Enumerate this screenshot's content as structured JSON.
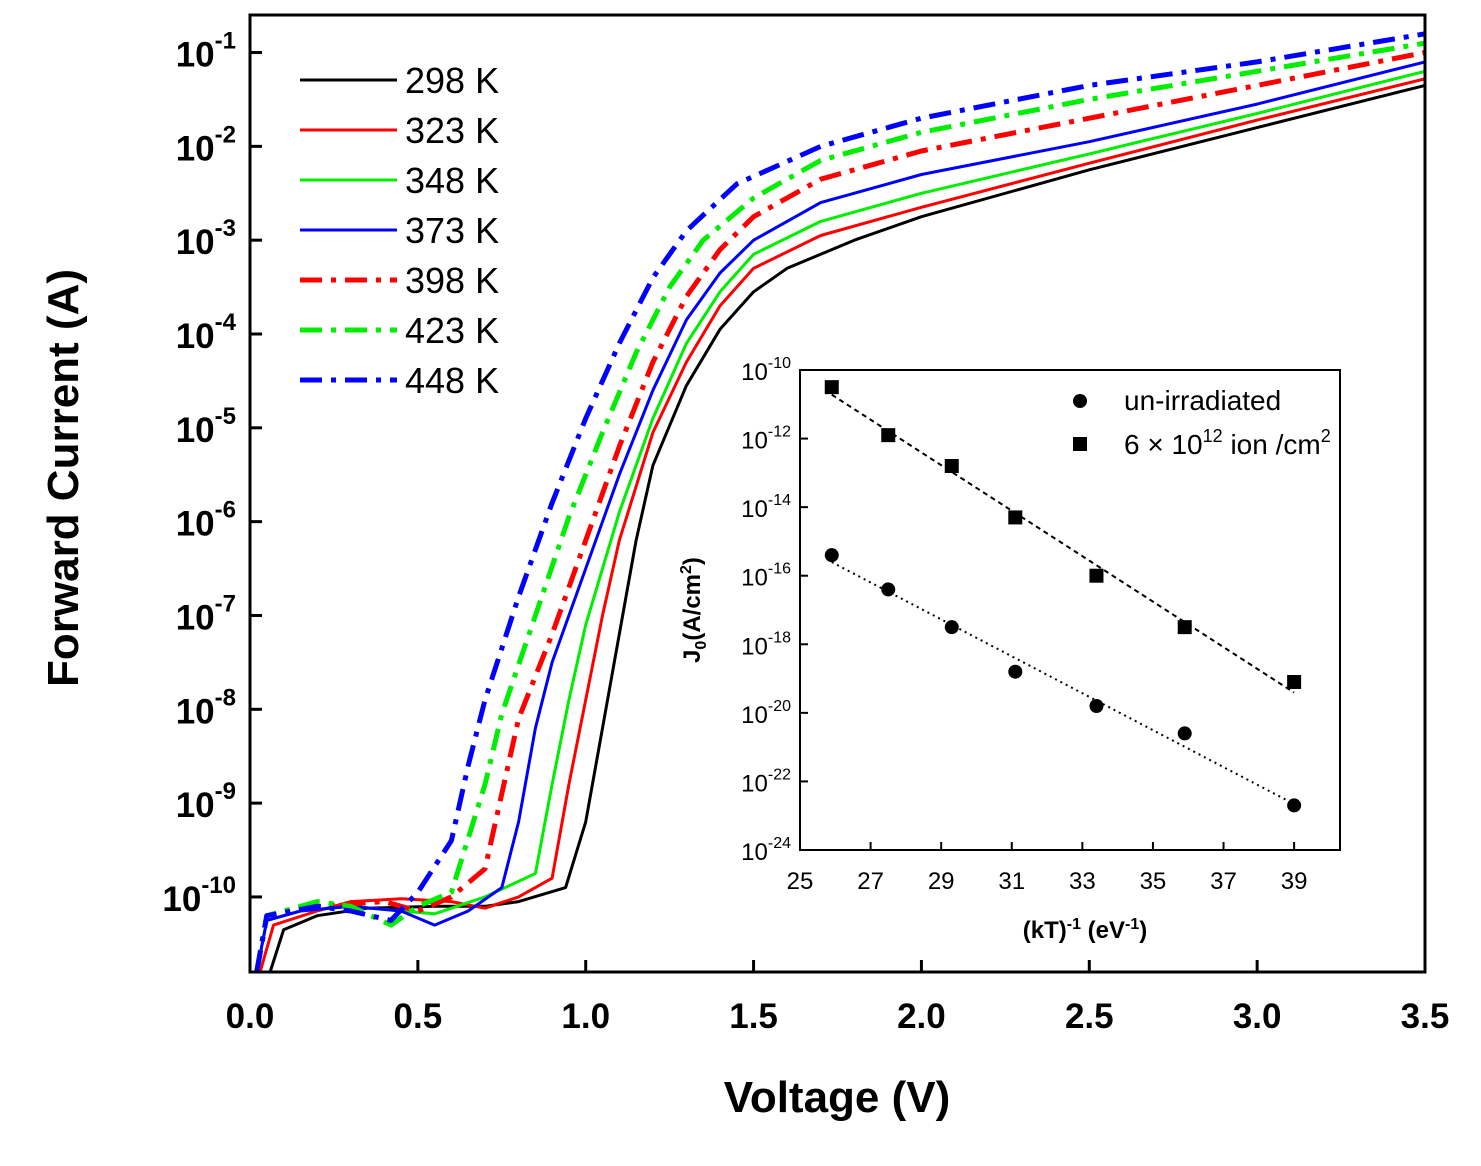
{
  "chart_data": [
    {
      "type": "line",
      "id": "main",
      "xlabel": "Voltage (V)",
      "ylabel": "Forward Current (A)",
      "xlim": [
        0,
        3.5
      ],
      "ylim_log10": [
        -10.8,
        -0.6
      ],
      "x_ticks": [
        {
          "value": 0.0,
          "label": "0.0"
        },
        {
          "value": 0.5,
          "label": "0.5"
        },
        {
          "value": 1.0,
          "label": "1.0"
        },
        {
          "value": 1.5,
          "label": "1.5"
        },
        {
          "value": 2.0,
          "label": "2.0"
        },
        {
          "value": 2.5,
          "label": "2.5"
        },
        {
          "value": 3.0,
          "label": "3.0"
        },
        {
          "value": 3.5,
          "label": "3.5"
        }
      ],
      "y_ticks": [
        {
          "exp": -1,
          "base": "10",
          "sup": "-1"
        },
        {
          "exp": -2,
          "base": "10",
          "sup": "-2"
        },
        {
          "exp": -3,
          "base": "10",
          "sup": "-3"
        },
        {
          "exp": -4,
          "base": "10",
          "sup": "-4"
        },
        {
          "exp": -5,
          "base": "10",
          "sup": "-5"
        },
        {
          "exp": -6,
          "base": "10",
          "sup": "-6"
        },
        {
          "exp": -7,
          "base": "10",
          "sup": "-7"
        },
        {
          "exp": -8,
          "base": "10",
          "sup": "-8"
        },
        {
          "exp": -9,
          "base": "10",
          "sup": "-9"
        },
        {
          "exp": -10,
          "base": "10",
          "sup": "-10"
        }
      ],
      "legend_position": "top-left",
      "series": [
        {
          "name": "298 K",
          "color": "#000000",
          "style": "solid",
          "points": [
            [
              0.06,
              -10.8
            ],
            [
              0.1,
              -10.35
            ],
            [
              0.2,
              -10.2
            ],
            [
              0.35,
              -10.12
            ],
            [
              0.55,
              -10.1
            ],
            [
              0.7,
              -10.1
            ],
            [
              0.8,
              -10.05
            ],
            [
              0.94,
              -9.9
            ],
            [
              1.0,
              -9.2
            ],
            [
              1.05,
              -8.2
            ],
            [
              1.1,
              -7.2
            ],
            [
              1.15,
              -6.2
            ],
            [
              1.2,
              -5.4
            ],
            [
              1.3,
              -4.55
            ],
            [
              1.4,
              -3.95
            ],
            [
              1.5,
              -3.55
            ],
            [
              1.6,
              -3.3
            ],
            [
              1.8,
              -3.0
            ],
            [
              2.0,
              -2.75
            ],
            [
              2.5,
              -2.25
            ],
            [
              3.0,
              -1.8
            ],
            [
              3.5,
              -1.35
            ]
          ]
        },
        {
          "name": "323 K",
          "color": "#ff0000",
          "style": "solid",
          "points": [
            [
              0.03,
              -10.8
            ],
            [
              0.07,
              -10.3
            ],
            [
              0.2,
              -10.15
            ],
            [
              0.3,
              -10.05
            ],
            [
              0.45,
              -10.02
            ],
            [
              0.6,
              -10.05
            ],
            [
              0.7,
              -10.12
            ],
            [
              0.8,
              -10.0
            ],
            [
              0.9,
              -9.8
            ],
            [
              0.95,
              -8.8
            ],
            [
              1.0,
              -7.9
            ],
            [
              1.05,
              -7.0
            ],
            [
              1.1,
              -6.2
            ],
            [
              1.2,
              -5.05
            ],
            [
              1.3,
              -4.3
            ],
            [
              1.4,
              -3.7
            ],
            [
              1.5,
              -3.3
            ],
            [
              1.7,
              -2.95
            ],
            [
              2.0,
              -2.65
            ],
            [
              2.5,
              -2.18
            ],
            [
              3.0,
              -1.72
            ],
            [
              3.5,
              -1.28
            ]
          ]
        },
        {
          "name": "348 K",
          "color": "#00ee00",
          "style": "solid",
          "points": [
            [
              0.02,
              -10.8
            ],
            [
              0.05,
              -10.25
            ],
            [
              0.15,
              -10.15
            ],
            [
              0.3,
              -10.1
            ],
            [
              0.45,
              -10.15
            ],
            [
              0.55,
              -10.18
            ],
            [
              0.7,
              -10.0
            ],
            [
              0.85,
              -9.75
            ],
            [
              0.9,
              -8.8
            ],
            [
              0.95,
              -7.9
            ],
            [
              1.0,
              -7.1
            ],
            [
              1.1,
              -5.9
            ],
            [
              1.2,
              -4.9
            ],
            [
              1.3,
              -4.1
            ],
            [
              1.4,
              -3.55
            ],
            [
              1.5,
              -3.15
            ],
            [
              1.7,
              -2.8
            ],
            [
              2.0,
              -2.5
            ],
            [
              2.5,
              -2.08
            ],
            [
              3.0,
              -1.65
            ],
            [
              3.5,
              -1.2
            ]
          ]
        },
        {
          "name": "373 K",
          "color": "#0000ff",
          "style": "solid",
          "points": [
            [
              0.02,
              -10.8
            ],
            [
              0.05,
              -10.25
            ],
            [
              0.15,
              -10.15
            ],
            [
              0.3,
              -10.1
            ],
            [
              0.45,
              -10.15
            ],
            [
              0.55,
              -10.3
            ],
            [
              0.65,
              -10.15
            ],
            [
              0.75,
              -9.9
            ],
            [
              0.8,
              -9.2
            ],
            [
              0.85,
              -8.2
            ],
            [
              0.9,
              -7.5
            ],
            [
              1.0,
              -6.5
            ],
            [
              1.1,
              -5.5
            ],
            [
              1.2,
              -4.6
            ],
            [
              1.3,
              -3.85
            ],
            [
              1.4,
              -3.35
            ],
            [
              1.5,
              -3.0
            ],
            [
              1.7,
              -2.6
            ],
            [
              2.0,
              -2.3
            ],
            [
              2.5,
              -1.95
            ],
            [
              3.0,
              -1.55
            ],
            [
              3.5,
              -1.1
            ]
          ]
        },
        {
          "name": "398 K",
          "color": "#ff0000",
          "style": "dashdot",
          "points": [
            [
              0.02,
              -10.8
            ],
            [
              0.05,
              -10.2
            ],
            [
              0.2,
              -10.1
            ],
            [
              0.4,
              -10.05
            ],
            [
              0.5,
              -10.15
            ],
            [
              0.6,
              -10.0
            ],
            [
              0.7,
              -9.7
            ],
            [
              0.75,
              -8.9
            ],
            [
              0.8,
              -8.1
            ],
            [
              0.9,
              -7.2
            ],
            [
              1.0,
              -6.2
            ],
            [
              1.1,
              -5.2
            ],
            [
              1.2,
              -4.3
            ],
            [
              1.3,
              -3.6
            ],
            [
              1.4,
              -3.1
            ],
            [
              1.5,
              -2.75
            ],
            [
              1.7,
              -2.35
            ],
            [
              2.0,
              -2.05
            ],
            [
              2.5,
              -1.7
            ],
            [
              3.0,
              -1.35
            ],
            [
              3.5,
              -1.0
            ]
          ]
        },
        {
          "name": "423 K",
          "color": "#00ee00",
          "style": "dashdot",
          "points": [
            [
              0.02,
              -10.8
            ],
            [
              0.05,
              -10.2
            ],
            [
              0.2,
              -10.05
            ],
            [
              0.3,
              -10.1
            ],
            [
              0.42,
              -10.3
            ],
            [
              0.5,
              -10.1
            ],
            [
              0.6,
              -9.95
            ],
            [
              0.7,
              -8.8
            ],
            [
              0.75,
              -8.05
            ],
            [
              0.85,
              -7.0
            ],
            [
              0.95,
              -5.95
            ],
            [
              1.05,
              -5.05
            ],
            [
              1.15,
              -4.2
            ],
            [
              1.25,
              -3.5
            ],
            [
              1.35,
              -3.0
            ],
            [
              1.5,
              -2.55
            ],
            [
              1.7,
              -2.15
            ],
            [
              2.0,
              -1.85
            ],
            [
              2.5,
              -1.5
            ],
            [
              3.0,
              -1.2
            ],
            [
              3.5,
              -0.9
            ]
          ]
        },
        {
          "name": "448 K",
          "color": "#0000ff",
          "style": "dashdot",
          "points": [
            [
              0.02,
              -10.8
            ],
            [
              0.05,
              -10.2
            ],
            [
              0.2,
              -10.1
            ],
            [
              0.3,
              -10.15
            ],
            [
              0.42,
              -10.25
            ],
            [
              0.5,
              -9.95
            ],
            [
              0.6,
              -9.4
            ],
            [
              0.65,
              -8.6
            ],
            [
              0.7,
              -7.9
            ],
            [
              0.8,
              -6.8
            ],
            [
              0.9,
              -5.8
            ],
            [
              1.0,
              -4.9
            ],
            [
              1.1,
              -4.1
            ],
            [
              1.2,
              -3.4
            ],
            [
              1.3,
              -2.9
            ],
            [
              1.45,
              -2.4
            ],
            [
              1.7,
              -2.0
            ],
            [
              2.0,
              -1.7
            ],
            [
              2.5,
              -1.35
            ],
            [
              3.0,
              -1.1
            ],
            [
              3.5,
              -0.8
            ]
          ]
        }
      ]
    },
    {
      "type": "scatter",
      "id": "inset",
      "xlabel_parts": {
        "pre": "(kT)",
        "sup1": "-1",
        "mid": " (eV",
        "sup2": "-1",
        "post": ")"
      },
      "ylabel_parts": {
        "pre": "J",
        "sub": "0",
        "mid": "(A/cm",
        "sup": "2",
        "post": ")"
      },
      "xlim": [
        25,
        40.3
      ],
      "ylim_log10": [
        -24,
        -10
      ],
      "x_ticks": [
        "25",
        "27",
        "29",
        "31",
        "33",
        "35",
        "37",
        "39"
      ],
      "y_ticks": [
        {
          "exp": -10,
          "base": "10",
          "sup": "-10"
        },
        {
          "exp": -12,
          "base": "10",
          "sup": "-12"
        },
        {
          "exp": -14,
          "base": "10",
          "sup": "-14"
        },
        {
          "exp": -16,
          "base": "10",
          "sup": "-16"
        },
        {
          "exp": -18,
          "base": "10",
          "sup": "-18"
        },
        {
          "exp": -20,
          "base": "10",
          "sup": "-20"
        },
        {
          "exp": -22,
          "base": "10",
          "sup": "-22"
        },
        {
          "exp": -24,
          "base": "10",
          "sup": "-24"
        }
      ],
      "legend_position": "top-right",
      "series": [
        {
          "name": "un-irradiated",
          "marker": "circle",
          "fit": "dotted",
          "x": [
            25.9,
            27.5,
            29.3,
            31.1,
            33.4,
            35.9,
            39.0
          ],
          "log10_y": [
            -15.4,
            -16.4,
            -17.5,
            -18.8,
            -19.8,
            -20.6,
            -22.7
          ]
        },
        {
          "name_parts": {
            "pre": "6 × 10",
            "sup": "12",
            "mid": " ion /cm",
            "sup2": "2"
          },
          "marker": "square",
          "fit": "dashed",
          "x": [
            25.9,
            27.5,
            29.3,
            31.1,
            33.4,
            35.9,
            39.0
          ],
          "log10_y": [
            -10.5,
            -11.9,
            -12.8,
            -14.3,
            -16.0,
            -17.5,
            -19.1
          ]
        }
      ]
    }
  ]
}
